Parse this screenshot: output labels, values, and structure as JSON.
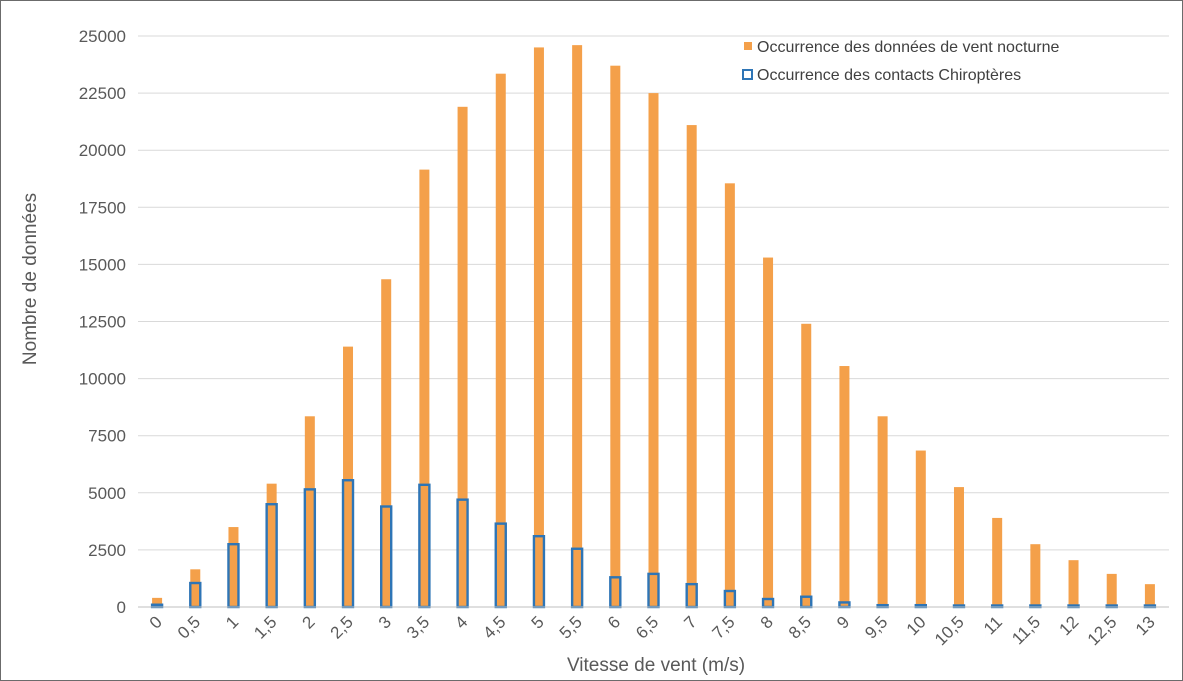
{
  "chart_data": {
    "type": "bar",
    "xlabel": "Vitesse de vent (m/s)",
    "ylabel": "Nombre de données",
    "ylim": [
      0,
      25000
    ],
    "yticks": [
      "0",
      "2500",
      "5000",
      "7500",
      "10000",
      "12500",
      "15000",
      "17500",
      "20000",
      "22500",
      "25000"
    ],
    "categories": [
      "0",
      "0,5",
      "1",
      "1,5",
      "2",
      "2,5",
      "3",
      "3,5",
      "4",
      "4,5",
      "5",
      "5,5",
      "6",
      "6,5",
      "7",
      "7,5",
      "8",
      "8,5",
      "9",
      "9,5",
      "10",
      "10,5",
      "11",
      "11,5",
      "12",
      "12,5",
      "13"
    ],
    "series": [
      {
        "name": "Occurrence des données de vent nocturne",
        "color": "#f4a04a",
        "style": "filled",
        "values": [
          400,
          1650,
          3500,
          5400,
          8350,
          11400,
          14350,
          19150,
          21900,
          23350,
          24500,
          24600,
          23700,
          22500,
          21100,
          18550,
          15300,
          12400,
          10550,
          8350,
          6850,
          5250,
          3900,
          2750,
          2050,
          1450,
          1000
        ]
      },
      {
        "name": "Occurrence des contacts Chiroptères",
        "color": "#2e75b6",
        "style": "outlined",
        "values": [
          100,
          1050,
          2750,
          4500,
          5150,
          5550,
          4400,
          5350,
          4700,
          3650,
          3100,
          2550,
          1300,
          1450,
          1000,
          700,
          350,
          450,
          200,
          80,
          80,
          60,
          40,
          20,
          20,
          0,
          10
        ]
      }
    ],
    "grid": true,
    "legend_position": "top-right"
  }
}
